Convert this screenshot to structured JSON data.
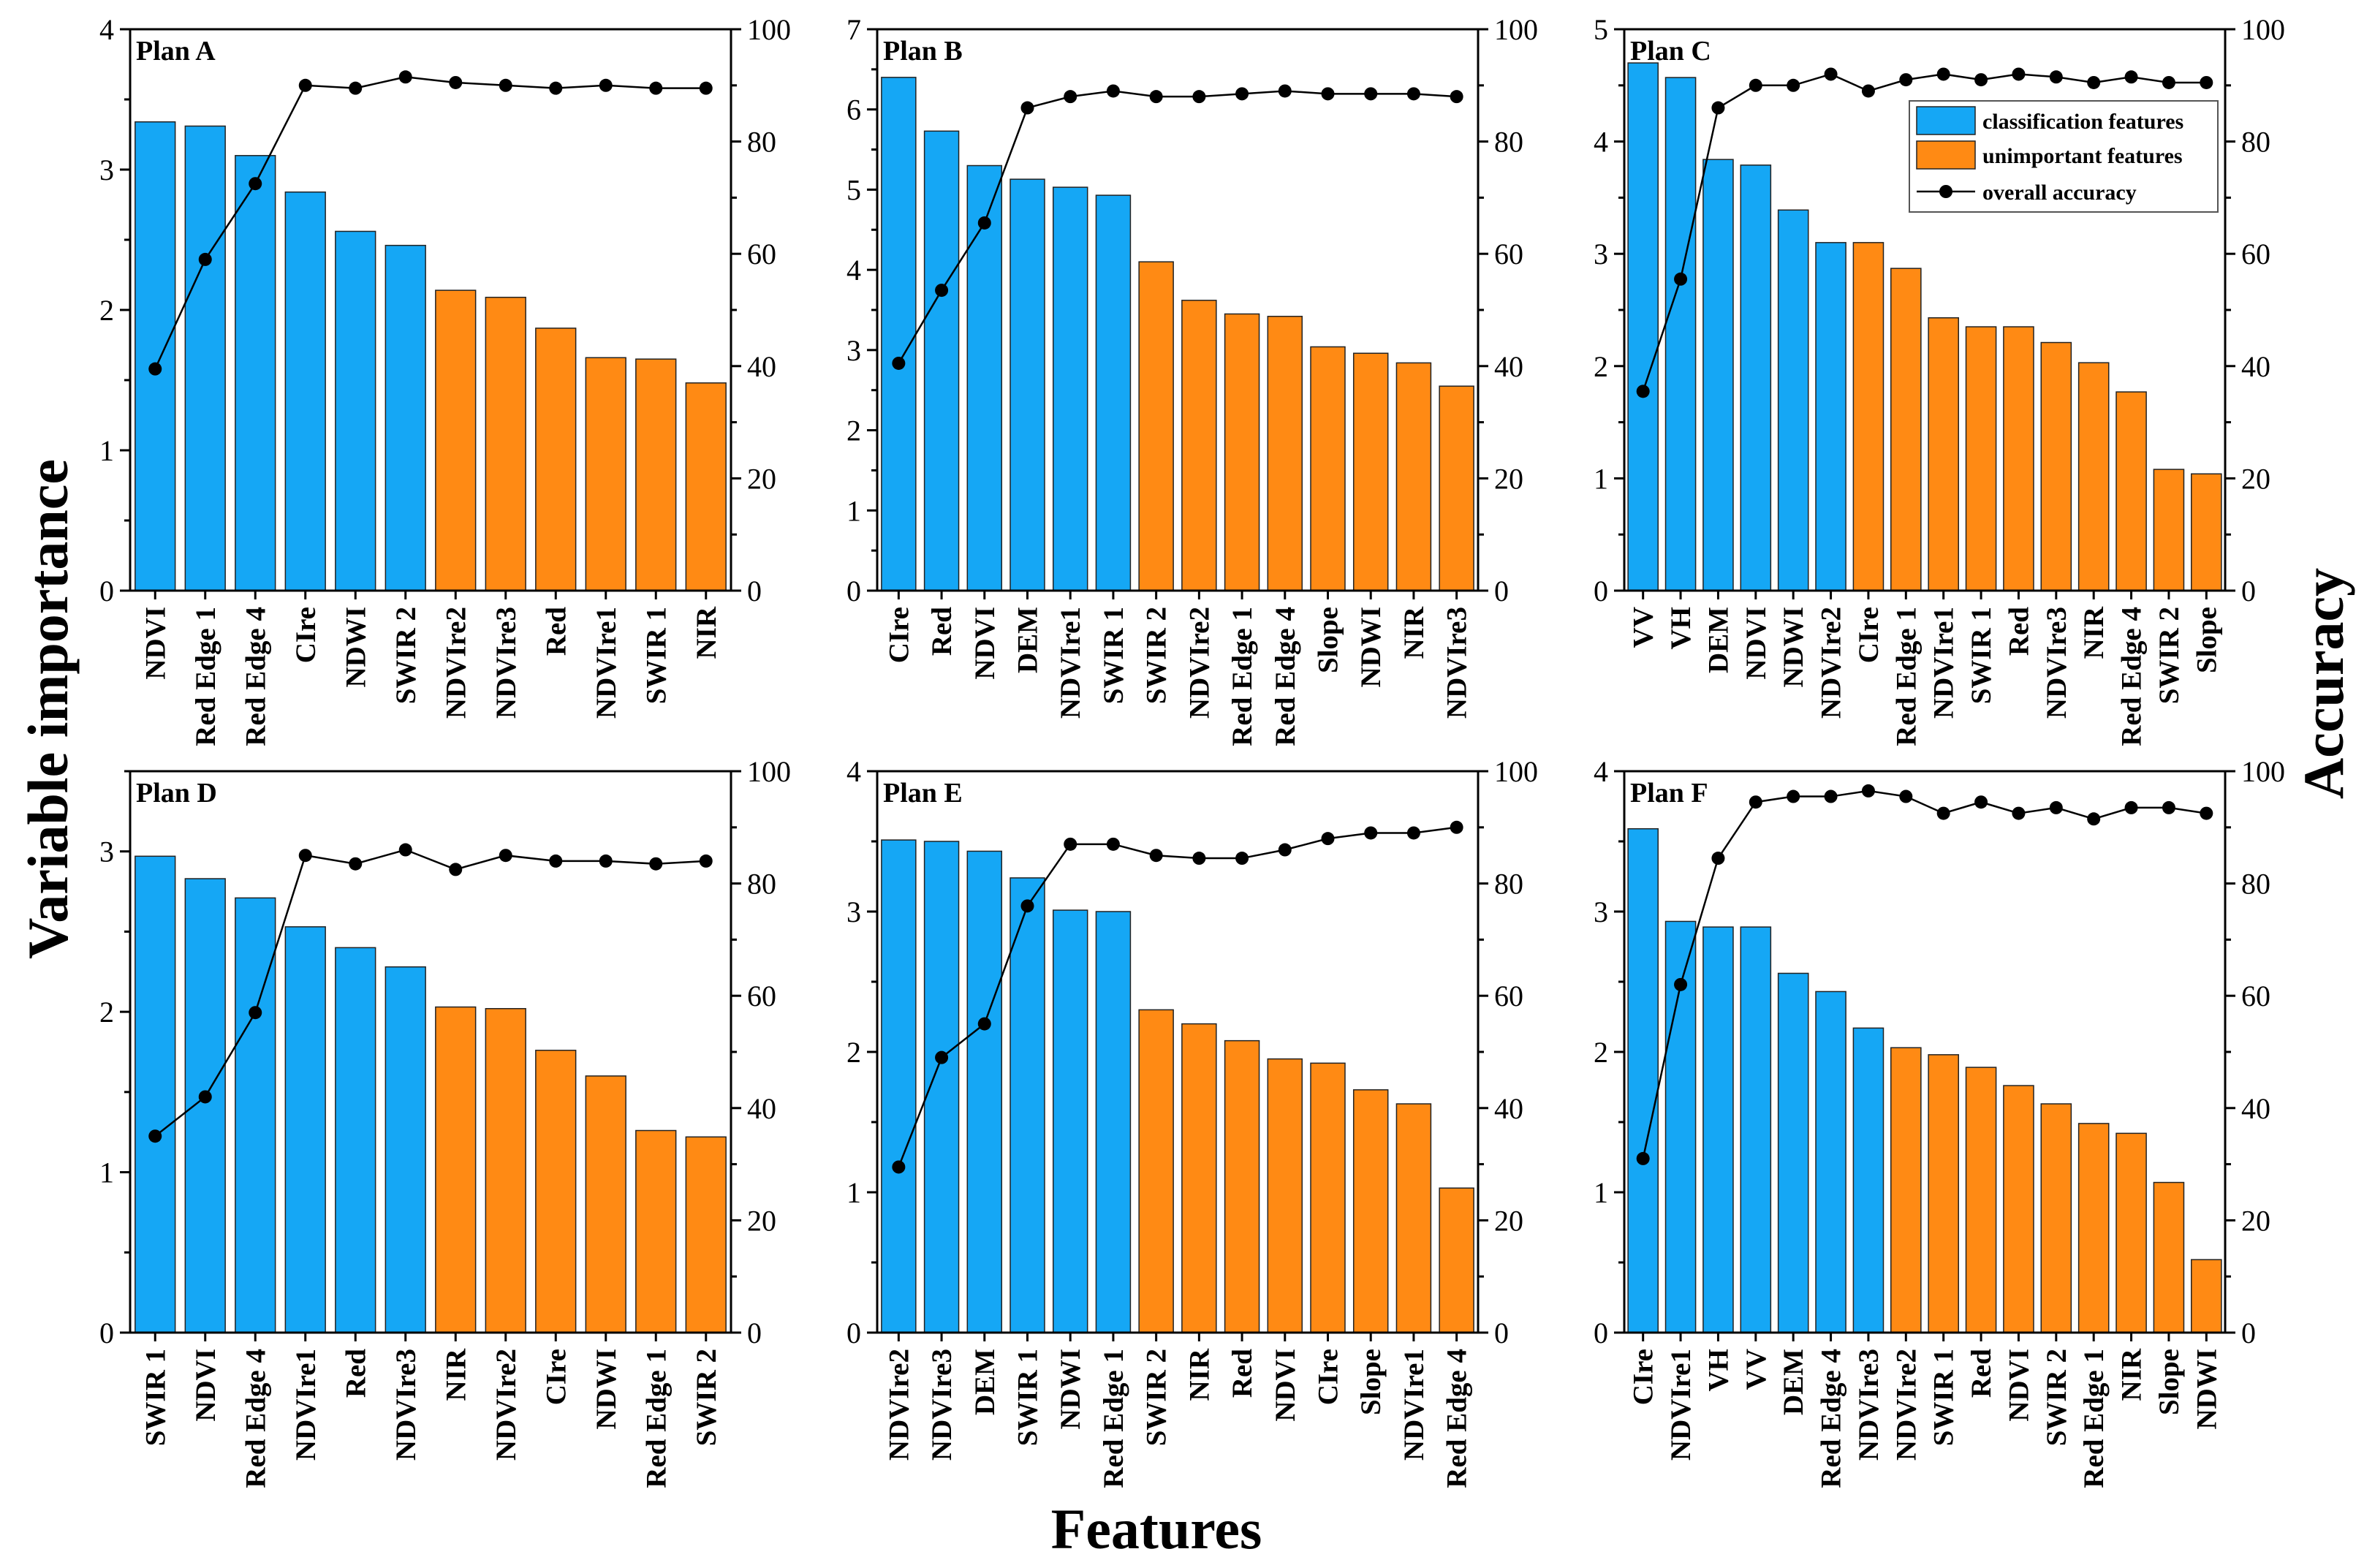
{
  "axis_titles": {
    "y_left": "Variable importance",
    "y_right": "Accuracy",
    "x": "Features"
  },
  "legend": {
    "classification": "classification features",
    "unimportant": "unimportant features",
    "accuracy": "overall accuracy"
  },
  "colors": {
    "classification": "#15A7F5",
    "unimportant": "#FF8A14",
    "line": "#000000"
  },
  "chart_data": [
    {
      "type": "bar+line",
      "title": "Plan A",
      "categories": [
        "NDVI",
        "Red Edge 1",
        "Red Edge 4",
        "CIre",
        "NDWI",
        "SWIR 2",
        "NDVIre2",
        "NDVIre3",
        "Red",
        "NDVIre1",
        "SWIR 1",
        "NIR"
      ],
      "importance": [
        3.34,
        3.31,
        3.1,
        2.84,
        2.56,
        2.46,
        2.14,
        2.09,
        1.87,
        1.66,
        1.65,
        1.48
      ],
      "n_classification": 6,
      "accuracy": [
        39.5,
        59,
        72.5,
        90,
        89.5,
        91.5,
        90.5,
        90,
        89.5,
        90,
        89.5,
        89.5
      ],
      "ylim": [
        0,
        4
      ],
      "yticks": [
        0,
        1,
        2,
        3,
        4
      ],
      "y2lim": [
        0,
        100
      ],
      "y2ticks": [
        0,
        20,
        40,
        60,
        80,
        100
      ],
      "xlabel": "Features",
      "ylabel": "Variable importance",
      "y2label": "Accuracy"
    },
    {
      "type": "bar+line",
      "title": "Plan B",
      "categories": [
        "CIre",
        "Red",
        "NDVI",
        "DEM",
        "NDVIre1",
        "SWIR 1",
        "SWIR 2",
        "NDVIre2",
        "Red Edge 1",
        "Red Edge 4",
        "Slope",
        "NDWI",
        "NIR",
        "NDVIre3"
      ],
      "importance": [
        6.4,
        5.73,
        5.3,
        5.13,
        5.03,
        4.93,
        4.1,
        3.62,
        3.45,
        3.42,
        3.04,
        2.96,
        2.84,
        2.55
      ],
      "n_classification": 6,
      "accuracy": [
        40.5,
        53.5,
        65.5,
        86,
        88,
        89,
        88,
        88,
        88.5,
        89,
        88.5,
        88.5,
        88.5,
        88
      ],
      "ylim": [
        0,
        7
      ],
      "yticks": [
        0,
        1,
        2,
        3,
        4,
        5,
        6,
        7
      ],
      "y2lim": [
        0,
        100
      ],
      "y2ticks": [
        0,
        20,
        40,
        60,
        80,
        100
      ],
      "xlabel": "Features",
      "ylabel": "Variable importance",
      "y2label": "Accuracy"
    },
    {
      "type": "bar+line",
      "title": "Plan C",
      "categories": [
        "VV",
        "VH",
        "DEM",
        "NDVI",
        "NDWI",
        "NDVIre2",
        "CIre",
        "Red Edge 1",
        "NDVIre1",
        "SWIR 1",
        "Red",
        "NDVIre3",
        "NIR",
        "Red Edge 4",
        "SWIR 2",
        "Slope"
      ],
      "importance": [
        4.7,
        4.57,
        3.84,
        3.79,
        3.39,
        3.1,
        3.1,
        2.87,
        2.43,
        2.35,
        2.35,
        2.21,
        2.03,
        1.77,
        1.08,
        1.04
      ],
      "n_classification": 6,
      "accuracy": [
        35.5,
        55.5,
        86,
        90,
        90,
        92,
        89,
        91,
        92,
        91,
        92,
        91.5,
        90.5,
        91.5,
        90.5,
        90.5
      ],
      "ylim": [
        0,
        5
      ],
      "yticks": [
        0,
        1,
        2,
        3,
        4,
        5
      ],
      "y2lim": [
        0,
        100
      ],
      "y2ticks": [
        0,
        20,
        40,
        60,
        80,
        100
      ],
      "xlabel": "Features",
      "ylabel": "Variable importance",
      "y2label": "Accuracy",
      "legend_position": "top-right"
    },
    {
      "type": "bar+line",
      "title": "Plan D",
      "categories": [
        "SWIR 1",
        "NDVI",
        "Red Edge 4",
        "NDVIre1",
        "Red",
        "NDVIre3",
        "NIR",
        "NDVIre2",
        "CIre",
        "NDWI",
        "Red Edge 1",
        "SWIR 2"
      ],
      "importance": [
        2.97,
        2.83,
        2.71,
        2.53,
        2.4,
        2.28,
        2.03,
        2.02,
        1.76,
        1.6,
        1.26,
        1.22
      ],
      "n_classification": 6,
      "accuracy": [
        35,
        42,
        57,
        85,
        83.5,
        86,
        82.5,
        85,
        84,
        84,
        83.5,
        84
      ],
      "ylim": [
        0,
        3.5
      ],
      "yticks": [
        0,
        1,
        2,
        3
      ],
      "y2lim": [
        0,
        100
      ],
      "y2ticks": [
        0,
        20,
        40,
        60,
        80,
        100
      ],
      "xlabel": "Features",
      "ylabel": "Variable importance",
      "y2label": "Accuracy"
    },
    {
      "type": "bar+line",
      "title": "Plan E",
      "categories": [
        "NDVIre2",
        "NDVIre3",
        "DEM",
        "SWIR 1",
        "NDWI",
        "Red Edge 1",
        "SWIR 2",
        "NIR",
        "Red",
        "NDVI",
        "CIre",
        "Slope",
        "NDVIre1",
        "Red Edge 4"
      ],
      "importance": [
        3.51,
        3.5,
        3.43,
        3.24,
        3.01,
        3.0,
        2.3,
        2.2,
        2.08,
        1.95,
        1.92,
        1.73,
        1.63,
        1.03
      ],
      "n_classification": 6,
      "accuracy": [
        29.5,
        49,
        55,
        76,
        87,
        87,
        85,
        84.5,
        84.5,
        86,
        88,
        89,
        89,
        90
      ],
      "ylim": [
        0,
        4
      ],
      "yticks": [
        0,
        1,
        2,
        3,
        4
      ],
      "y2lim": [
        0,
        100
      ],
      "y2ticks": [
        0,
        20,
        40,
        60,
        80,
        100
      ],
      "xlabel": "Features",
      "ylabel": "Variable importance",
      "y2label": "Accuracy"
    },
    {
      "type": "bar+line",
      "title": "Plan F",
      "categories": [
        "CIre",
        "NDVIre1",
        "VH",
        "VV",
        "DEM",
        "Red Edge 4",
        "NDVIre3",
        "NDVIre2",
        "SWIR 1",
        "Red",
        "NDVI",
        "SWIR 2",
        "Red Edge 1",
        "NIR",
        "Slope",
        "NDWI"
      ],
      "importance": [
        3.59,
        2.93,
        2.89,
        2.89,
        2.56,
        2.43,
        2.17,
        2.03,
        1.98,
        1.89,
        1.76,
        1.63,
        1.49,
        1.42,
        1.07,
        0.52
      ],
      "n_classification": 7,
      "accuracy": [
        31,
        62,
        84.5,
        94.5,
        95.5,
        95.5,
        96.5,
        95.5,
        92.5,
        94.5,
        92.5,
        93.5,
        91.5,
        93.5,
        93.5,
        92.5
      ],
      "ylim": [
        0,
        4
      ],
      "yticks": [
        0,
        1,
        2,
        3,
        4
      ],
      "y2lim": [
        0,
        100
      ],
      "y2ticks": [
        0,
        20,
        40,
        60,
        80,
        100
      ],
      "xlabel": "Features",
      "ylabel": "Variable importance",
      "y2label": "Accuracy"
    }
  ]
}
